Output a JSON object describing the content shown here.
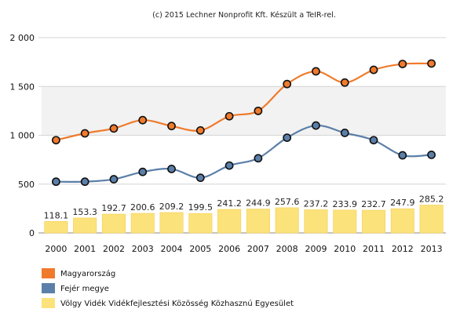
{
  "credit": "(c) 2015 Lechner Nonprofit Kft. Készült a TeIR-rel.",
  "chart_data": {
    "type": "bar+line",
    "x": [
      "2000",
      "2001",
      "2002",
      "2003",
      "2004",
      "2005",
      "2006",
      "2007",
      "2008",
      "2009",
      "2010",
      "2011",
      "2012",
      "2013"
    ],
    "ylim": [
      0,
      2000
    ],
    "yticks": [
      0,
      500,
      1000,
      1500,
      2000
    ],
    "ytick_labels": [
      "0",
      "500",
      "1 000",
      "1 500",
      "2 000"
    ],
    "grid": true,
    "legend_position": "bottom-left",
    "series": [
      {
        "name": "Magyarország",
        "type": "line",
        "color": "#f07a2c",
        "values": [
          950,
          1020,
          1070,
          1155,
          1095,
          1050,
          1195,
          1250,
          1525,
          1655,
          1540,
          1670,
          1730,
          1735
        ]
      },
      {
        "name": "Fejér megye",
        "type": "line",
        "color": "#5b7fa8",
        "values": [
          525,
          525,
          550,
          625,
          655,
          565,
          690,
          765,
          975,
          1100,
          1025,
          950,
          795,
          800
        ]
      },
      {
        "name": "Völgy Vidék Vidékfejlesztési Közösség Közhasznú Egyesület",
        "type": "bar",
        "color": "#fce27a",
        "values": [
          118.1,
          153.3,
          192.7,
          200.6,
          209.2,
          199.5,
          241.2,
          244.9,
          257.6,
          237.2,
          233.9,
          232.7,
          247.9,
          285.2
        ],
        "value_labels": [
          "118.1",
          "153.3",
          "192.7",
          "200.6",
          "209.2",
          "199.5",
          "241.2",
          "244.9",
          "257.6",
          "237.2",
          "233.9",
          "232.7",
          "247.9",
          "285.2"
        ]
      }
    ]
  }
}
